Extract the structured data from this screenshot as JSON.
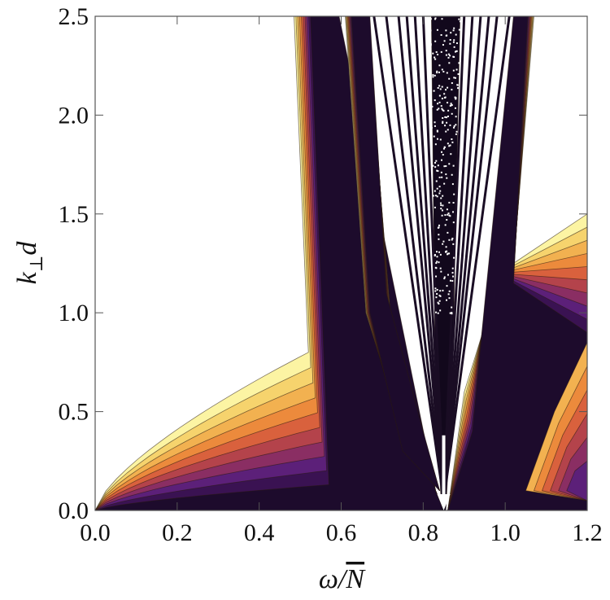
{
  "chart_data": {
    "type": "heatmap",
    "title": "",
    "xlabel": "ω/N̄",
    "ylabel": "k⊥d",
    "xlim": [
      0.0,
      1.2
    ],
    "ylim": [
      0.0,
      2.5
    ],
    "x_ticks": [
      "0.0",
      "0.2",
      "0.4",
      "0.6",
      "0.8",
      "1.0",
      "1.2"
    ],
    "x_tick_values": [
      0.0,
      0.2,
      0.4,
      0.6,
      0.8,
      1.0,
      1.2
    ],
    "y_ticks": [
      "0.0",
      "0.5",
      "1.0",
      "1.5",
      "2.0",
      "2.5"
    ],
    "y_tick_values": [
      0.0,
      0.5,
      1.0,
      1.5,
      2.0,
      2.5
    ],
    "colormap": [
      "#fcf4a3",
      "#f6d36d",
      "#f2b150",
      "#ec8a3c",
      "#d9613d",
      "#b4434b",
      "#8a2e63",
      "#5c2079",
      "#3a1252",
      "#1d0b2c"
    ],
    "background_color": "#ffffff",
    "arrow_marker": {
      "x": 0.85,
      "y_start": 0.38,
      "y_end": 0.0,
      "color": "#ffffff"
    },
    "resonance_center": 0.85
  }
}
